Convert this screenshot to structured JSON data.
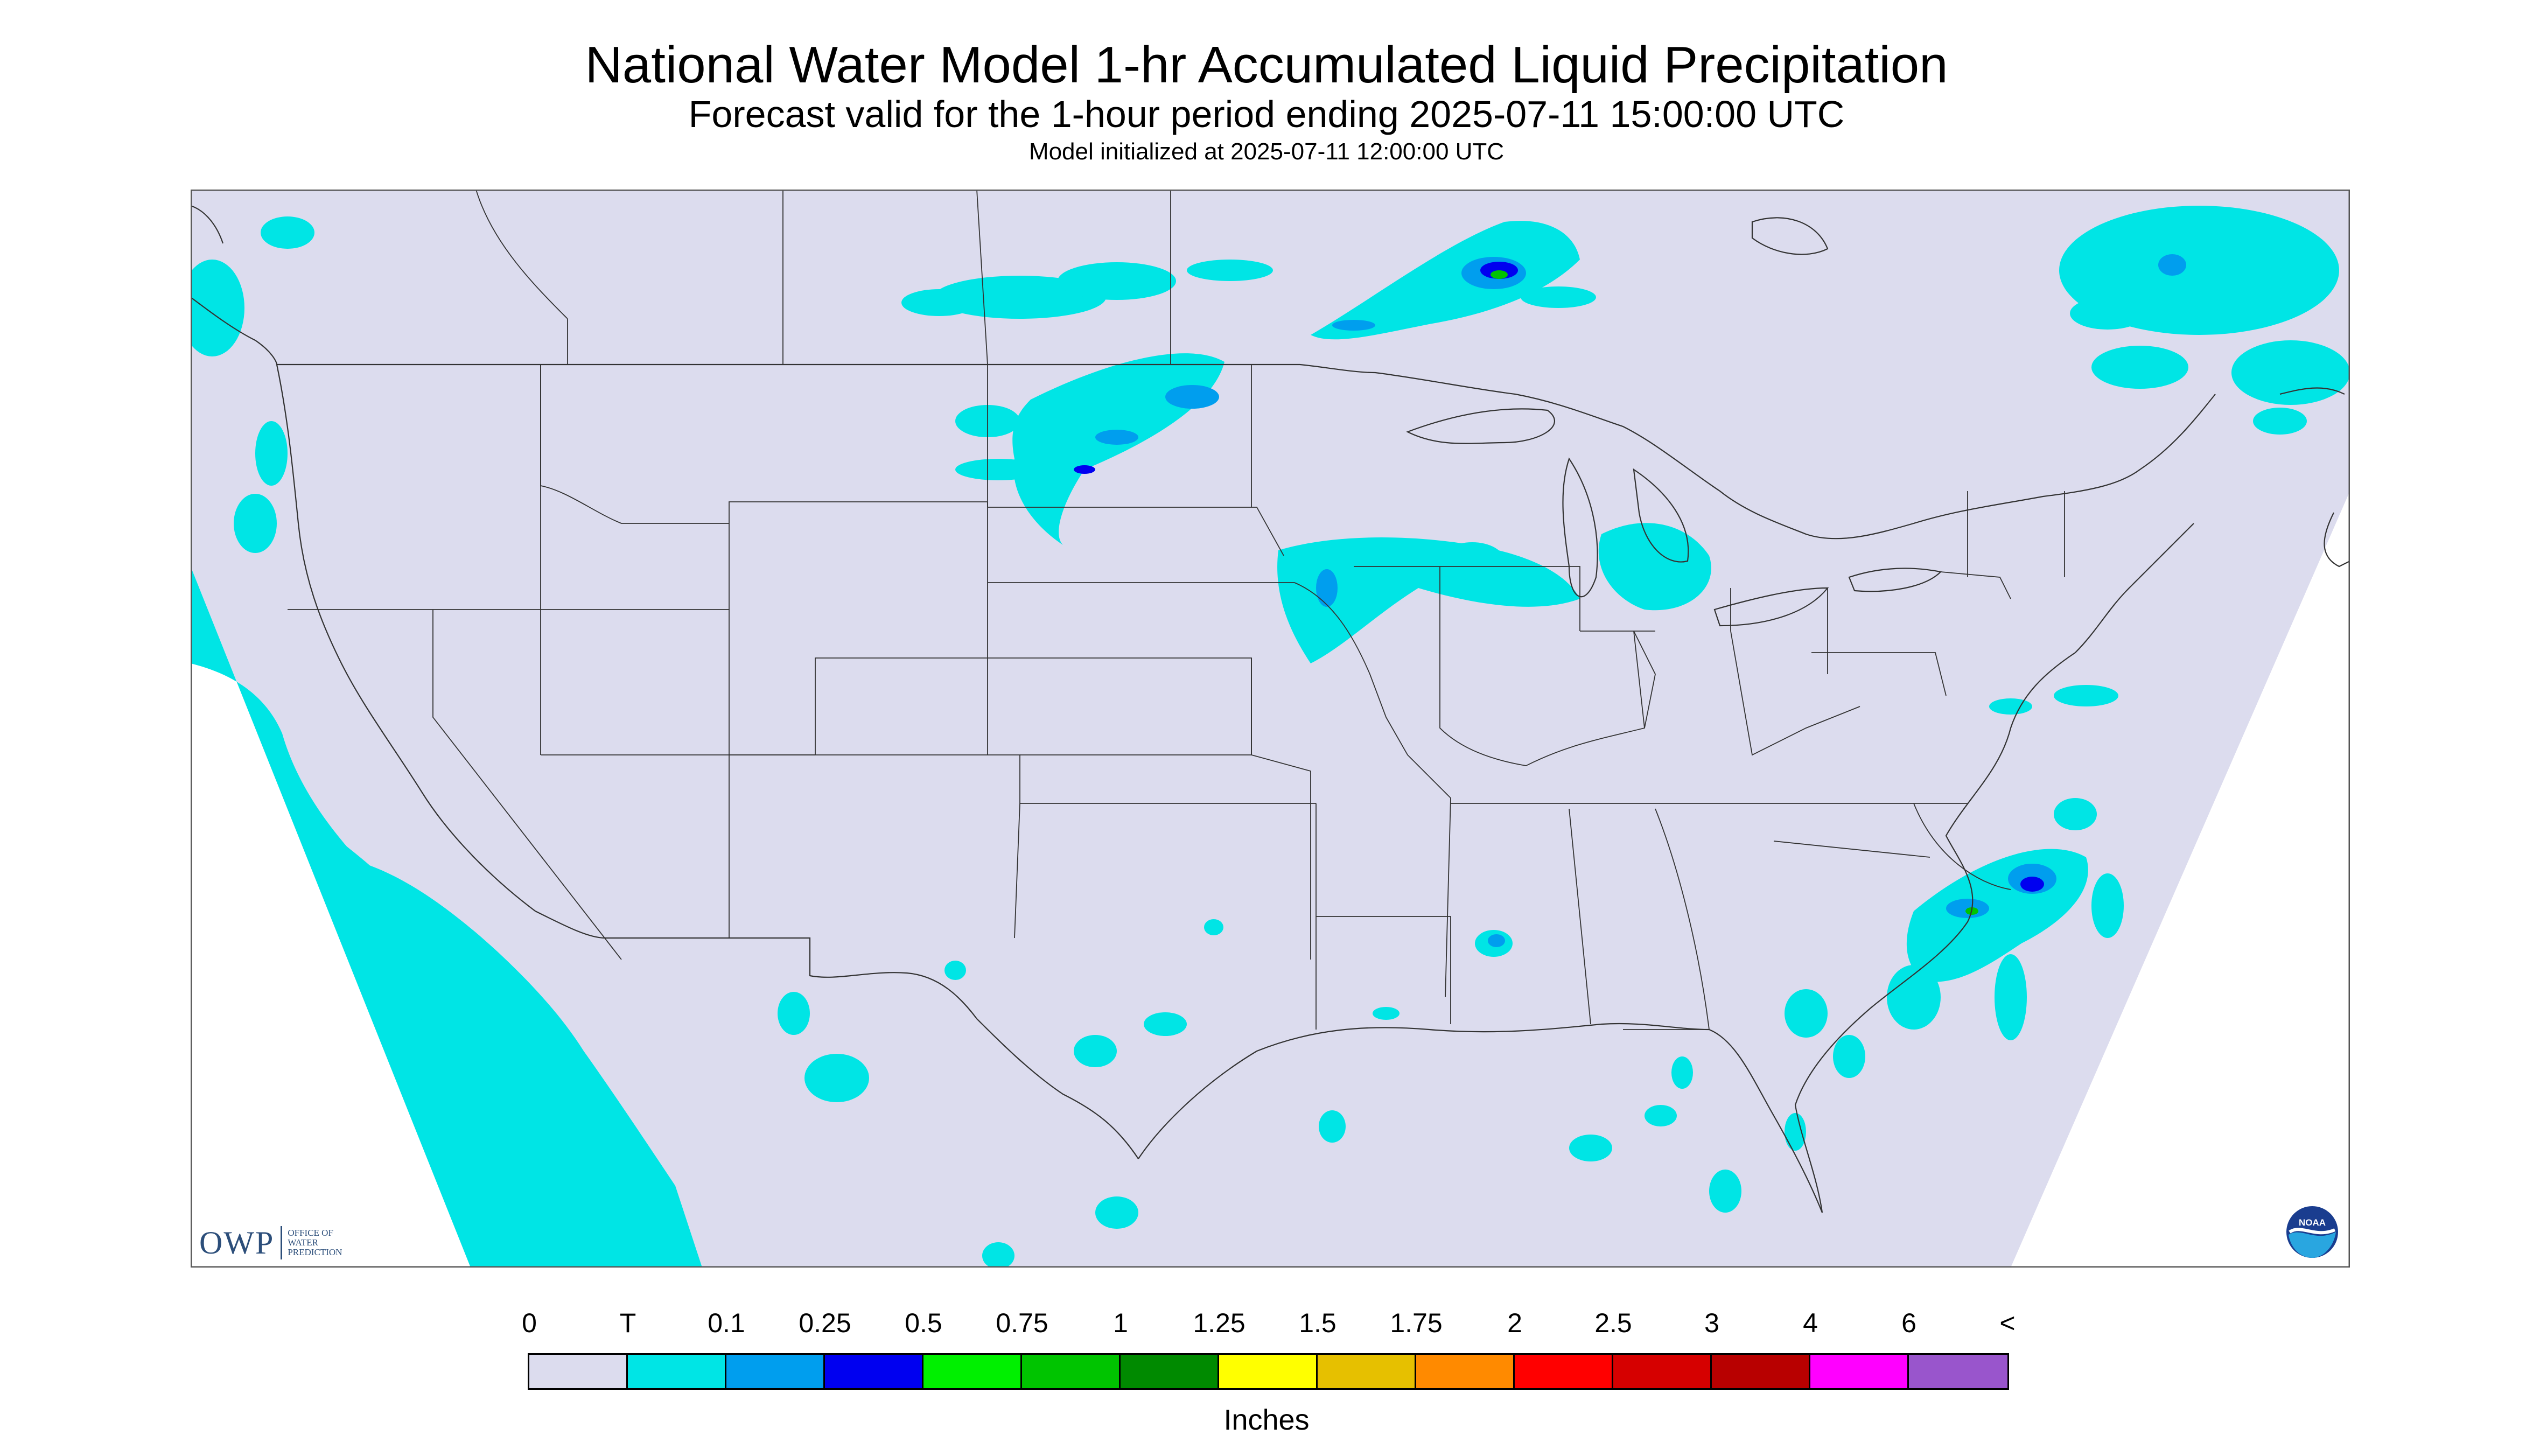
{
  "title": "National Water Model 1-hr Accumulated Liquid Precipitation",
  "subtitle": "Forecast valid for the 1-hour period ending 2025-07-11 15:00:00 UTC",
  "init_line": "Model initialized at 2025-07-11 12:00:00 UTC",
  "owp_logo": {
    "mark": "OWP",
    "line1": "OFFICE OF",
    "line2": "WATER",
    "line3": "PREDICTION"
  },
  "noaa_logo": {
    "text": "NOAA"
  },
  "legend": {
    "labels": [
      "0",
      "T",
      "0.1",
      "0.25",
      "0.5",
      "0.75",
      "1",
      "1.25",
      "1.5",
      "1.75",
      "2",
      "2.5",
      "3",
      "4",
      "6",
      "<"
    ],
    "colors": [
      "#dcdcee",
      "#00e5e5",
      "#009eee",
      "#0000f0",
      "#00f000",
      "#00c400",
      "#008a00",
      "#ffff00",
      "#e6c000",
      "#ff8a00",
      "#ff0000",
      "#d60000",
      "#b80000",
      "#ff00ff",
      "#9955cc"
    ],
    "units": "Inches"
  },
  "colors": {
    "map_background": "#dcdcee",
    "border_lines": "#333333",
    "trace": "#00e5e5"
  }
}
